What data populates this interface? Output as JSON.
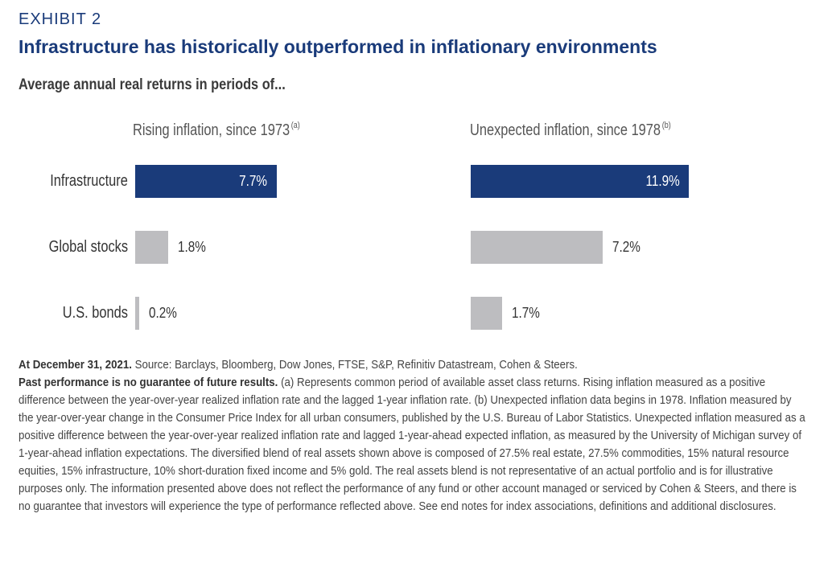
{
  "header": {
    "exhibit": "EXHIBIT 2",
    "title": "Infrastructure has historically outperformed in inflationary environments",
    "subtitle": "Average annual real returns in periods of..."
  },
  "colors": {
    "title_blue": "#1a3b7a",
    "infrastructure_bar": "#1a3b7a",
    "other_bar": "#bdbdc0"
  },
  "chart_data": [
    {
      "type": "bar",
      "orientation": "horizontal",
      "title": "Rising inflation, since 1973",
      "title_note": "(a)",
      "categories": [
        "Infrastructure",
        "Global stocks",
        "U.S. bonds"
      ],
      "values": [
        7.7,
        1.8,
        0.2
      ],
      "value_labels": [
        "7.7%",
        "1.8%",
        "0.2%"
      ],
      "unit": "%",
      "grid": false
    },
    {
      "type": "bar",
      "orientation": "horizontal",
      "title": "Unexpected inflation, since 1978",
      "title_note": "(b)",
      "categories": [
        "Infrastructure",
        "Global stocks",
        "U.S. bonds"
      ],
      "values": [
        11.9,
        7.2,
        1.7
      ],
      "value_labels": [
        "11.9%",
        "7.2%",
        "1.7%"
      ],
      "unit": "%",
      "grid": false
    }
  ],
  "notes": {
    "date_bold": "At December 31, 2021.",
    "source": " Source: Barclays, Bloomberg, Dow Jones, FTSE, S&P, Refinitiv Datastream, Cohen & Steers.",
    "perf_bold": "Past performance is no guarantee of future results.",
    "body": " (a) Represents common period of available asset class returns. Rising inflation measured as a positive difference between the year-over-year realized inflation rate and the lagged 1-year inflation rate. (b) Unexpected inflation data begins in 1978. Inflation measured by the year-over-year change in the Consumer Price Index for all urban consumers, published by the U.S. Bureau of Labor Statistics. Unexpected inflation measured as a positive difference between the year-over-year realized inflation rate and lagged 1-year-ahead expected inflation, as measured by the University of Michigan survey of 1-year-ahead inflation expectations. The diversified blend of real assets shown above is composed of 27.5% real estate, 27.5% commodities, 15% natural resource equities, 15% infrastructure, 10% short-duration fixed income and 5% gold. The real assets blend is not representative of an actual portfolio and is for illustrative purposes only. The information presented above does not reflect the performance of any fund or other account managed or serviced by Cohen & Steers, and there is no guarantee that investors will experience the type of performance reflected above. See end notes for index associations, definitions and additional disclosures."
  }
}
